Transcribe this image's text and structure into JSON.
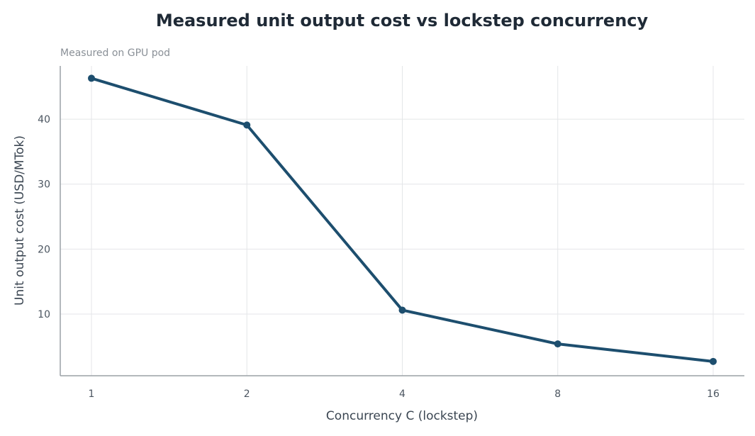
{
  "chart_data": {
    "type": "line",
    "title": "Measured unit output cost vs lockstep concurrency",
    "subtitle": "Measured on GPU pod",
    "xlabel": "Concurrency C (lockstep)",
    "ylabel": "Unit output cost (USD/MTok)",
    "x_scale": "log2",
    "categories": [
      "1",
      "2",
      "4",
      "8",
      "16"
    ],
    "x": [
      1,
      2,
      4,
      8,
      16
    ],
    "y_ticks": [
      10,
      20,
      30,
      40
    ],
    "ylim": [
      0.5,
      48.2
    ],
    "grid": true,
    "series": [
      {
        "values": [
          46.3,
          39.1,
          10.6,
          5.4,
          2.7
        ],
        "color": "#1d4e6e"
      }
    ]
  }
}
